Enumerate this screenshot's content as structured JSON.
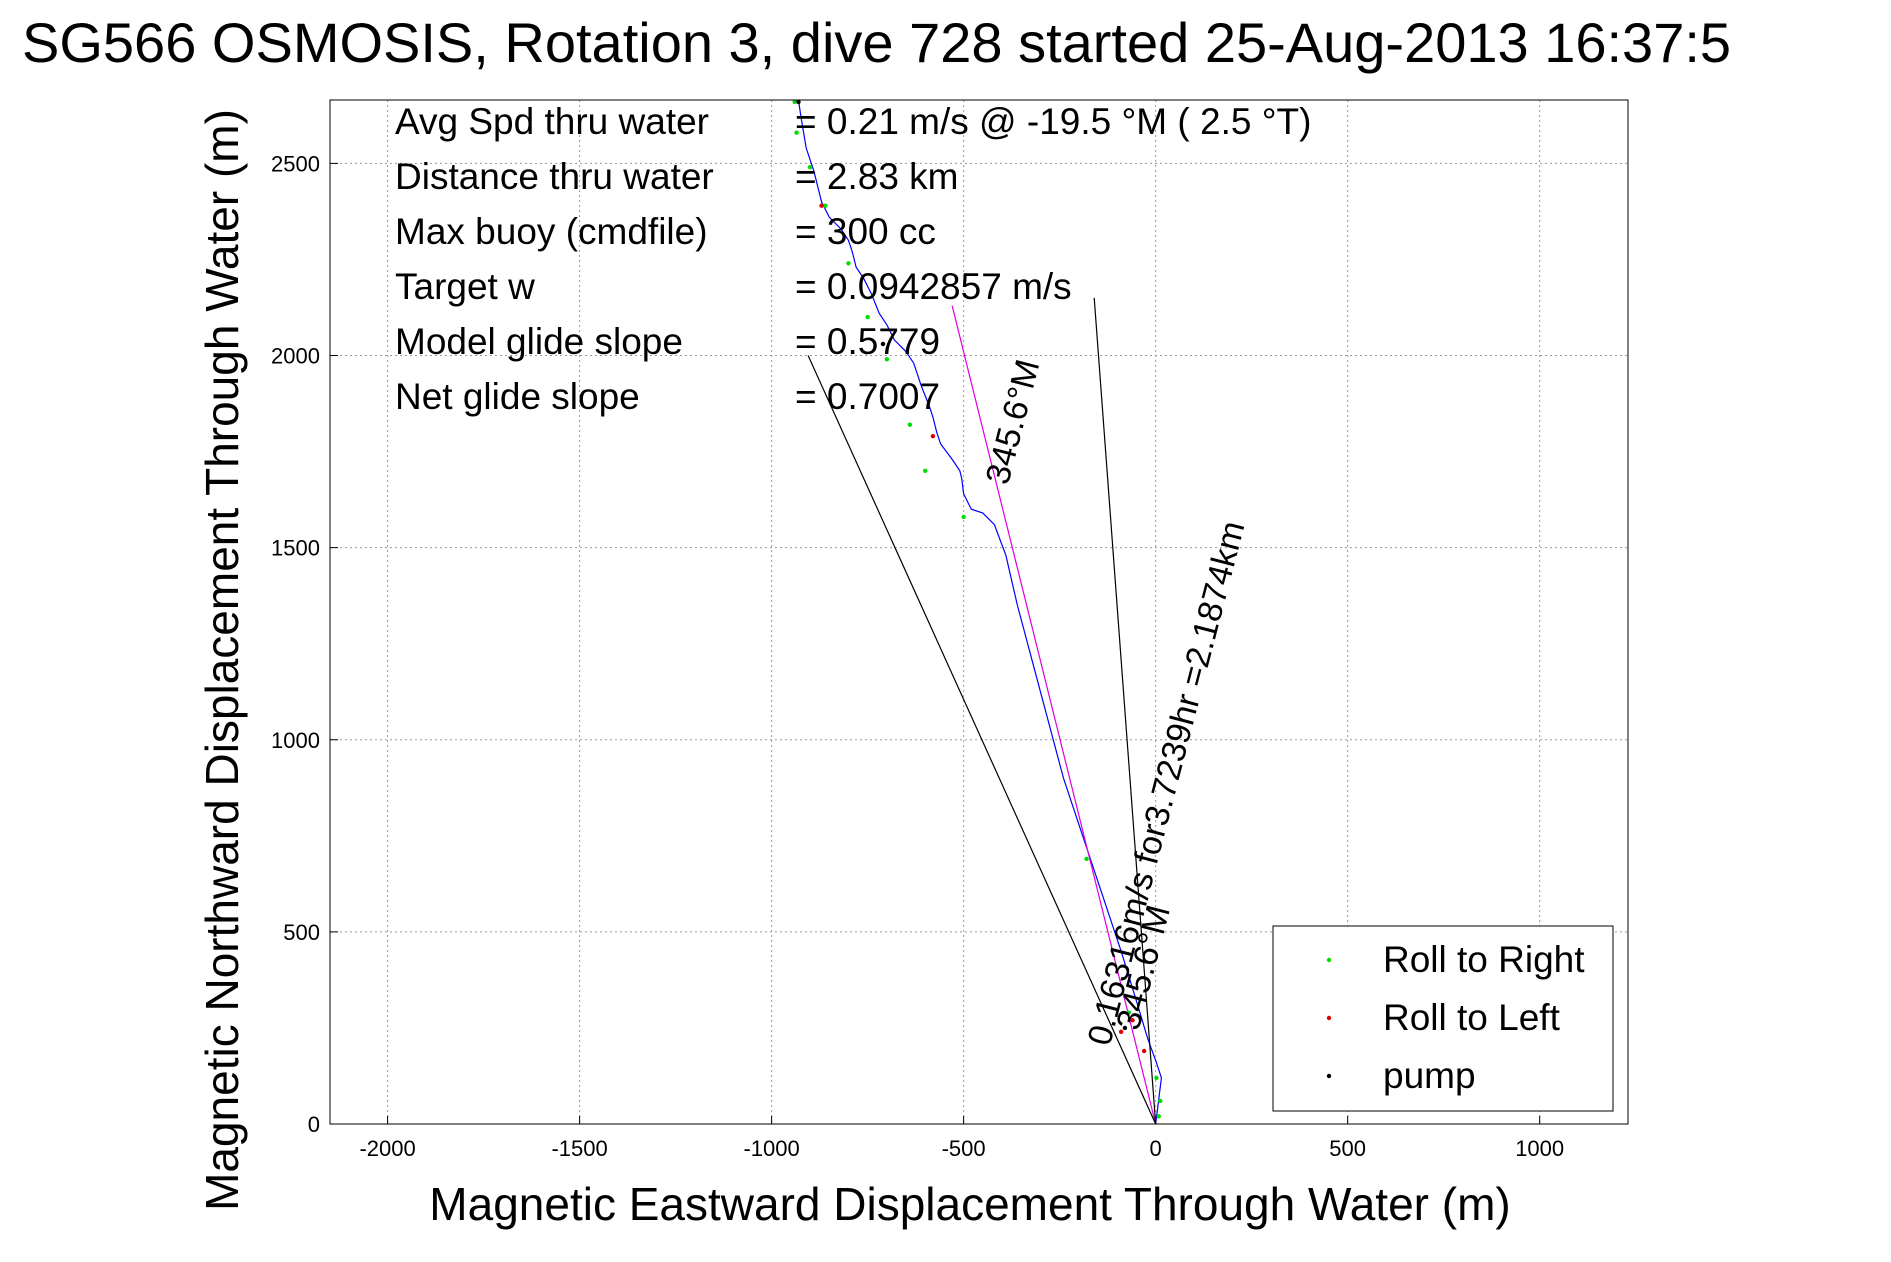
{
  "chart_data": {
    "type": "line",
    "title": "SG566 OSMOSIS, Rotation 3, dive 728 started 25-Aug-2013 16:37:5",
    "xlabel": "Magnetic Eastward Displacement Through Water (m)",
    "ylabel": "Magnetic Northward Displacement Through Water (m)",
    "xlim": [
      -2150,
      1230
    ],
    "ylim": [
      0,
      2665
    ],
    "xticks": [
      -2000,
      -1500,
      -1000,
      -500,
      0,
      500,
      1000
    ],
    "yticks": [
      0,
      500,
      1000,
      1500,
      2000,
      2500
    ],
    "grid": true,
    "info_lines": [
      {
        "label": "Avg Spd thru water",
        "value": "=  0.21 m/s @ -19.5 °M (  2.5 °T)"
      },
      {
        "label": "Distance thru water",
        "value": "=  2.83 km"
      },
      {
        "label": "Max buoy (cmdfile)",
        "value": "= 300 cc"
      },
      {
        "label": "Target w",
        "value": "= 0.0942857 m/s"
      },
      {
        "label": "Model glide slope",
        "value": "= 0.5779"
      },
      {
        "label": "Net glide slope",
        "value": "= 0.7007"
      }
    ],
    "annotations": [
      {
        "text": "0.16316m/s for3.7239hr =2.1874km",
        "angle_deg": -75.5,
        "anchor": [
          -120,
          200
        ]
      },
      {
        "text": "345.6°M",
        "angle_deg": -75.5,
        "anchor": [
          -45,
          240
        ]
      },
      {
        "text": "345.6°M",
        "angle_deg": -75.5,
        "anchor": [
          -385,
          1660
        ]
      }
    ],
    "legend": {
      "position": "bottom-right",
      "entries": [
        {
          "name": "Roll to Right",
          "color": "#00dd00"
        },
        {
          "name": "Roll to Left",
          "color": "#dd0000"
        },
        {
          "name": "pump",
          "color": "#000000"
        }
      ]
    },
    "series": [
      {
        "name": "track",
        "color": "#0000ff",
        "x": [
          0,
          5,
          10,
          15,
          2,
          -20,
          -50,
          -90,
          -140,
          -190,
          -240,
          -280,
          -320,
          -360,
          -390,
          -420,
          -450,
          -480,
          -500,
          -505,
          -510,
          -530,
          -560,
          -570,
          -580,
          -590,
          -610,
          -630,
          -650,
          -680,
          -700,
          -720,
          -740,
          -760,
          -780,
          -790,
          -800,
          -820,
          -850,
          -870,
          -880,
          -890,
          -900,
          -910,
          -915,
          -920,
          -925,
          -930
        ],
        "y": [
          0,
          40,
          80,
          120,
          160,
          220,
          320,
          450,
          600,
          750,
          900,
          1050,
          1200,
          1350,
          1480,
          1560,
          1590,
          1600,
          1640,
          1680,
          1700,
          1730,
          1770,
          1800,
          1840,
          1870,
          1920,
          1980,
          2010,
          2040,
          2080,
          2110,
          2160,
          2200,
          2230,
          2270,
          2300,
          2330,
          2360,
          2400,
          2440,
          2480,
          2510,
          2540,
          2570,
          2600,
          2630,
          2665
        ]
      },
      {
        "name": "depth-averaged current",
        "color": "#dd00dd",
        "x": [
          0,
          -530
        ],
        "y": [
          0,
          2130
        ]
      },
      {
        "name": "fan-left",
        "color": "#000000",
        "x": [
          0,
          -905
        ],
        "y": [
          0,
          2000
        ]
      },
      {
        "name": "fan-right",
        "color": "#000000",
        "x": [
          0,
          -160
        ],
        "y": [
          0,
          2150
        ]
      }
    ],
    "roll_right_points": {
      "x": [
        12,
        8,
        2,
        -70,
        -180,
        -500,
        -600,
        -640,
        -700,
        -750,
        -800,
        -860,
        -900,
        -935,
        -940
      ],
      "y": [
        60,
        20,
        120,
        290,
        690,
        1580,
        1700,
        1820,
        1990,
        2100,
        2240,
        2390,
        2490,
        2580,
        2660
      ]
    },
    "roll_left_points": {
      "x": [
        -60,
        -90,
        -30,
        -580,
        -870
      ],
      "y": [
        270,
        240,
        190,
        1790,
        2390
      ]
    },
    "pump_points": {
      "x": [
        -80,
        -710,
        -930
      ],
      "y": [
        250,
        2030,
        2660
      ]
    }
  }
}
